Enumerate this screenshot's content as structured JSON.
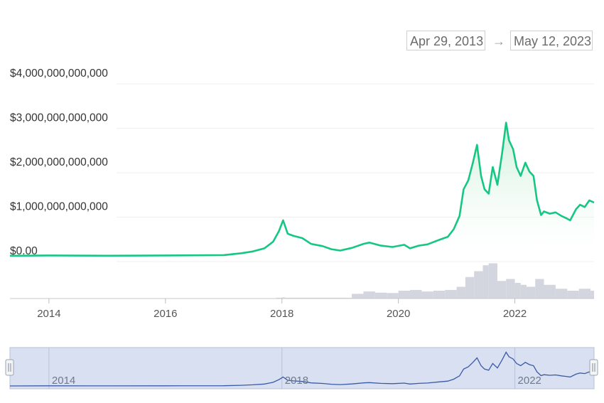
{
  "date_range": {
    "from": "Apr 29, 2013",
    "arrow": "→",
    "to": "May 12, 2023"
  },
  "colors": {
    "line": "#16c784",
    "area_top": "#c9efd7",
    "volume": "#d3d6de",
    "navigator_fill": "#d8e0f1",
    "navigator_line": "#3b5aa6",
    "grid": "#efefef"
  },
  "chart_data": {
    "type": "area",
    "title": "",
    "xlabel": "",
    "ylabel": "",
    "x_range": [
      2013.33,
      2023.36
    ],
    "ylim": [
      0,
      4000000000000
    ],
    "y_ticks": [
      {
        "value": 0,
        "label": "$0.00"
      },
      {
        "value": 1000000000000,
        "label": "$1,000,000,000,000"
      },
      {
        "value": 2000000000000,
        "label": "$2,000,000,000,000"
      },
      {
        "value": 3000000000000,
        "label": "$3,000,000,000,000"
      },
      {
        "value": 4000000000000,
        "label": "$4,000,000,000,000"
      }
    ],
    "x_ticks": [
      {
        "value": 2014,
        "label": "2014"
      },
      {
        "value": 2016,
        "label": "2016"
      },
      {
        "value": 2018,
        "label": "2018"
      },
      {
        "value": 2020,
        "label": "2020"
      },
      {
        "value": 2022,
        "label": "2022"
      }
    ],
    "grid": true,
    "series": [
      {
        "x": [
          2013.33,
          2014.0,
          2015.0,
          2016.0,
          2017.0,
          2017.3,
          2017.5,
          2017.7,
          2017.85,
          2017.95,
          2018.02,
          2018.1,
          2018.2,
          2018.35,
          2018.5,
          2018.7,
          2018.85,
          2019.0,
          2019.2,
          2019.4,
          2019.5,
          2019.7,
          2019.9,
          2020.1,
          2020.2,
          2020.35,
          2020.5,
          2020.7,
          2020.85,
          2020.95,
          2021.05,
          2021.12,
          2021.2,
          2021.28,
          2021.35,
          2021.42,
          2021.48,
          2021.55,
          2021.62,
          2021.7,
          2021.78,
          2021.85,
          2021.9,
          2021.97,
          2022.03,
          2022.1,
          2022.18,
          2022.25,
          2022.32,
          2022.38,
          2022.45,
          2022.5,
          2022.6,
          2022.7,
          2022.8,
          2022.88,
          2022.95,
          2023.05,
          2023.12,
          2023.2,
          2023.28,
          2023.36
        ],
        "y": [
          1500000000,
          10000000000,
          4000000000,
          10000000000,
          18000000000,
          60000000000,
          100000000000,
          170000000000,
          320000000000,
          560000000000,
          800000000000,
          500000000000,
          450000000000,
          400000000000,
          270000000000,
          220000000000,
          150000000000,
          120000000000,
          180000000000,
          270000000000,
          300000000000,
          230000000000,
          200000000000,
          250000000000,
          170000000000,
          230000000000,
          260000000000,
          360000000000,
          430000000000,
          600000000000,
          900000000000,
          1500000000000,
          1700000000000,
          2100000000000,
          2500000000000,
          1800000000000,
          1500000000000,
          1400000000000,
          2000000000000,
          1600000000000,
          2300000000000,
          3000000000000,
          2600000000000,
          2400000000000,
          2000000000000,
          1800000000000,
          2100000000000,
          1900000000000,
          1800000000000,
          1250000000000,
          920000000000,
          1000000000000,
          950000000000,
          980000000000,
          900000000000,
          850000000000,
          800000000000,
          1050000000000,
          1150000000000,
          1100000000000,
          1250000000000,
          1200000000000
        ]
      }
    ],
    "volume": {
      "x": [
        2017.9,
        2018.0,
        2018.05,
        2019.2,
        2019.4,
        2019.6,
        2019.8,
        2020.0,
        2020.2,
        2020.4,
        2020.6,
        2020.8,
        2021.0,
        2021.15,
        2021.3,
        2021.45,
        2021.55,
        2021.7,
        2021.85,
        2022.0,
        2022.1,
        2022.2,
        2022.35,
        2022.5,
        2022.7,
        2022.9,
        2023.1,
        2023.3
      ],
      "v": [
        0.02,
        0.03,
        0.02,
        0.12,
        0.18,
        0.15,
        0.14,
        0.2,
        0.22,
        0.18,
        0.2,
        0.22,
        0.3,
        0.55,
        0.7,
        0.85,
        0.9,
        0.45,
        0.5,
        0.4,
        0.35,
        0.3,
        0.5,
        0.35,
        0.25,
        0.2,
        0.25,
        0.2
      ]
    }
  },
  "navigator": {
    "labels": [
      {
        "value": 2014,
        "label": "2014"
      },
      {
        "value": 2018,
        "label": "2018"
      },
      {
        "value": 2022,
        "label": "2022"
      }
    ]
  }
}
